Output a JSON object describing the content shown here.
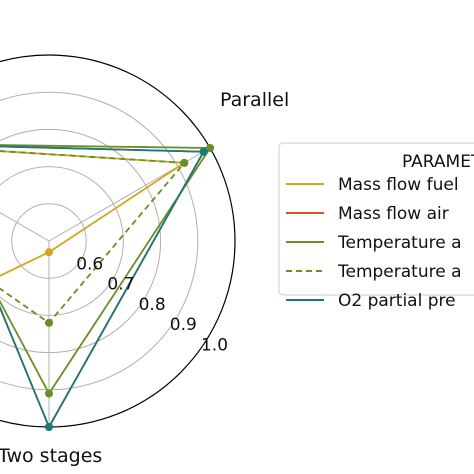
{
  "chart_data": {
    "type": "radar",
    "title": "",
    "axes": [
      "Parallel",
      "Two stages",
      ""
    ],
    "radial_ticks": [
      "0.6",
      "0.7",
      "0.8",
      "0.9",
      "1.0"
    ],
    "rlim": [
      0.5,
      1.0
    ],
    "grid": true,
    "legend": {
      "title": "PARAMETERS",
      "placement": "right",
      "entries": [
        "Mass flow fuel",
        "Mass flow air",
        "Temperature a",
        "Temperature a",
        "O2 partial pre"
      ]
    },
    "series": [
      {
        "name": "Mass flow fuel",
        "color": "#d4a520",
        "dash": false,
        "values": {
          "Parallel": 0.92,
          "Two stages": 0.53
        }
      },
      {
        "name": "Mass flow air",
        "color": "#d9531e",
        "dash": false,
        "values": {
          "Parallel": 0.98,
          "Two stages": 1.0
        }
      },
      {
        "name": "Temperature a",
        "color": "#6b8e23",
        "dash": false,
        "values": {
          "Parallel": 1.0,
          "Two stages": 0.91
        }
      },
      {
        "name": "Temperature a",
        "color": "#6b8e23",
        "dash": true,
        "values": {
          "Parallel": 0.92,
          "Two stages": 0.72
        }
      },
      {
        "name": "O2 partial pre",
        "color": "#1a7a7a",
        "dash": false,
        "values": {
          "Parallel": 0.98,
          "Two stages": 1.0
        }
      }
    ]
  }
}
